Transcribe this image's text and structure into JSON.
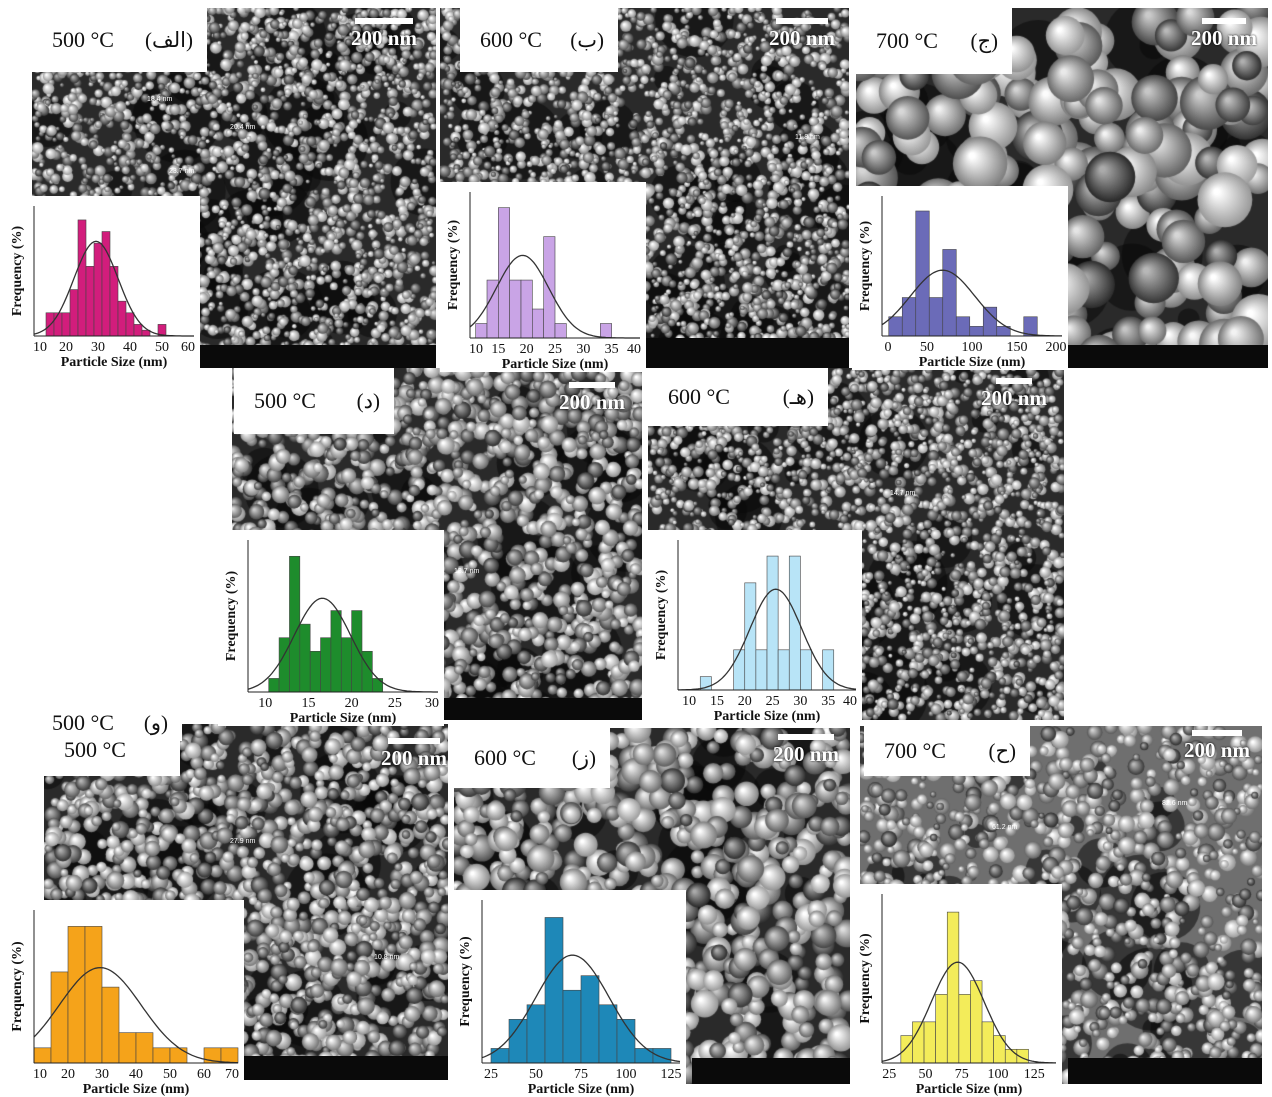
{
  "scale_label": "200 nm",
  "y_axis_label": "Frequency (%)",
  "x_axis_label": "Particle Size (nm)",
  "colors": {
    "alef": "#d21d7c",
    "be": "#c9a4e6",
    "jim": "#6b6bb8",
    "dal": "#1e8c2c",
    "he": "#b8e4f7",
    "vav": "#f5a31a",
    "ze": "#1e88b8",
    "he2": "#f3ec5a"
  },
  "panels": [
    {
      "id": "alef",
      "temp": "500 °C",
      "letter": "(الف)",
      "measurements": [
        "18.4 nm",
        "20.4 nm",
        "23.7 nm"
      ]
    },
    {
      "id": "be",
      "temp": "600 °C",
      "letter": "(ب)",
      "measurements": [
        "11.8 nm"
      ]
    },
    {
      "id": "jim",
      "temp": "700 °C",
      "letter": "(ج)",
      "measurements": []
    },
    {
      "id": "dal",
      "temp": "500 °C",
      "letter": "(د)",
      "measurements": [
        "13.7 nm"
      ]
    },
    {
      "id": "he",
      "temp": "600 °C",
      "letter": "(هـ)",
      "measurements": [
        "14.7 nm"
      ]
    },
    {
      "id": "vav",
      "temp": "500 °C",
      "letter": "(و)",
      "measurements": [
        "27.9 nm",
        "10.8 nm"
      ]
    },
    {
      "id": "ze",
      "temp": "600 °C",
      "letter": "(ز)",
      "measurements": []
    },
    {
      "id": "he2",
      "temp": "700 °C",
      "letter": "(ح)",
      "measurements": [
        "61.2 nm",
        "82.6 nm"
      ]
    }
  ],
  "chart_data": [
    {
      "type": "bar",
      "panel": "alef",
      "xlabel": "Particle Size (nm)",
      "ylabel": "Frequency (%)",
      "xlim": [
        10,
        60
      ],
      "xticks": [
        "10",
        "20",
        "30",
        "40",
        "50",
        "60"
      ],
      "bin_width": 2.5,
      "x": [
        15,
        17.5,
        20,
        22.5,
        25,
        27.5,
        30,
        32.5,
        35,
        37.5,
        40,
        42.5,
        45,
        47.5,
        50,
        52.5
      ],
      "values": [
        2,
        2,
        2,
        4,
        10,
        6,
        8,
        9,
        6,
        3,
        2,
        1,
        0.5,
        0,
        1,
        0
      ]
    },
    {
      "type": "bar",
      "panel": "be",
      "xlabel": "Particle Size (nm)",
      "ylabel": "Frequency (%)",
      "xlim": [
        10,
        40
      ],
      "xticks": [
        "10",
        "15",
        "20",
        "25",
        "30",
        "35",
        "40"
      ],
      "bin_width": 2,
      "x": [
        12,
        14,
        16,
        18,
        20,
        22,
        24,
        26,
        28,
        30,
        32,
        34
      ],
      "values": [
        1,
        4,
        9,
        4,
        4,
        2,
        7,
        1,
        0,
        0,
        0,
        1
      ]
    },
    {
      "type": "bar",
      "panel": "jim",
      "xlabel": "Particle Size (nm)",
      "ylabel": "Frequency (%)",
      "xlim": [
        0,
        200
      ],
      "xticks": [
        "0",
        "50",
        "100",
        "150",
        "200"
      ],
      "bin_width": 15,
      "x": [
        15,
        30,
        45,
        60,
        75,
        90,
        105,
        120,
        135,
        150,
        165,
        180
      ],
      "values": [
        2,
        4,
        13,
        4,
        9,
        2,
        1,
        3,
        1,
        0,
        2,
        0
      ]
    },
    {
      "type": "bar",
      "panel": "dal",
      "xlabel": "Particle Size (nm)",
      "ylabel": "Frequency (%)",
      "xlim": [
        8,
        30
      ],
      "xticks": [
        "10",
        "15",
        "20",
        "25",
        "30"
      ],
      "bin_width": 1.2,
      "x": [
        11,
        12.2,
        13.4,
        14.6,
        15.8,
        17,
        18.2,
        19.4,
        20.6,
        21.8,
        23,
        24.2
      ],
      "values": [
        1,
        4,
        10,
        5,
        3,
        4,
        6,
        4,
        6,
        3,
        1,
        0
      ]
    },
    {
      "type": "bar",
      "panel": "he",
      "xlabel": "Particle Size (nm)",
      "ylabel": "Frequency (%)",
      "xlim": [
        8,
        40
      ],
      "xticks": [
        "10",
        "15",
        "20",
        "25",
        "30",
        "35",
        "40"
      ],
      "bin_width": 2,
      "x": [
        13,
        15,
        17,
        19,
        21,
        23,
        25,
        27,
        29,
        31,
        33,
        35
      ],
      "values": [
        1,
        0,
        0,
        3,
        8,
        3,
        10,
        3,
        10,
        3,
        0,
        3
      ]
    },
    {
      "type": "bar",
      "panel": "vav",
      "xlabel": "Particle Size (nm)",
      "ylabel": "Frequency (%)",
      "xlim": [
        10,
        70
      ],
      "xticks": [
        "10",
        "20",
        "30",
        "40",
        "50",
        "60",
        "70"
      ],
      "bin_width": 5,
      "x": [
        12.5,
        17.5,
        22.5,
        27.5,
        32.5,
        37.5,
        42.5,
        47.5,
        52.5,
        57.5,
        62.5,
        67.5
      ],
      "values": [
        1,
        6,
        9,
        9,
        5,
        2,
        2,
        1,
        1,
        0,
        1,
        1
      ]
    },
    {
      "type": "bar",
      "panel": "ze",
      "xlabel": "Particle Size (nm)",
      "ylabel": "Frequency (%)",
      "xlim": [
        20,
        130
      ],
      "xticks": [
        "25",
        "50",
        "75",
        "100",
        "125"
      ],
      "bin_width": 10,
      "x": [
        30,
        40,
        50,
        60,
        70,
        80,
        90,
        100,
        110,
        120
      ],
      "values": [
        1,
        3,
        4,
        10,
        5,
        6,
        4,
        3,
        1,
        1
      ]
    },
    {
      "type": "bar",
      "panel": "he2",
      "xlabel": "Particle Size (nm)",
      "ylabel": "Frequency (%)",
      "xlim": [
        20,
        140
      ],
      "xticks": [
        "25",
        "50",
        "75",
        "100",
        "125"
      ],
      "bin_width": 8,
      "x": [
        37,
        45,
        53,
        61,
        69,
        77,
        85,
        93,
        101,
        109,
        117
      ],
      "values": [
        2,
        3,
        3,
        5,
        11,
        5,
        6,
        3,
        2,
        1,
        1
      ]
    }
  ]
}
